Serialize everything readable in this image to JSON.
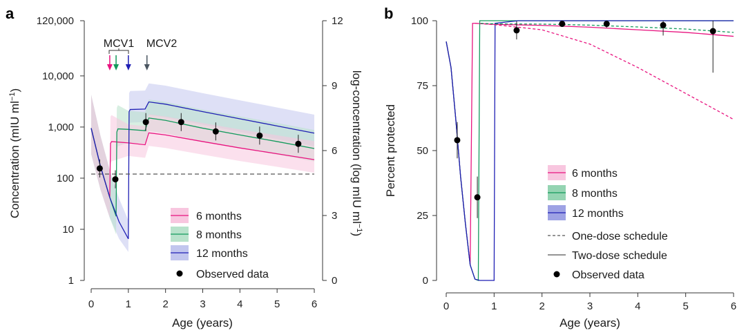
{
  "colors": {
    "six": "#e8137f",
    "eight": "#139a5c",
    "twelve": "#1f1fb4",
    "six_fill": "#f8c6df",
    "eight_fill": "#b8e2cb",
    "twelve_fill": "#c2c6ee",
    "threshold": "#555555",
    "mcv2_arrow": "#4a5560"
  },
  "panel_a": {
    "label": "a",
    "xlabel": "Age (years)",
    "ylabel_left": "Concentration (mIU ml",
    "ylabel_left_sup": "−1",
    "ylabel_left_close": ")",
    "ylabel_right": "log-concentration (log mIU ml",
    "ylabel_right_sup": "−1",
    "ylabel_right_close": ")",
    "xticks": [
      "0",
      "1",
      "2",
      "3",
      "4",
      "5",
      "6"
    ],
    "yticks_left": [
      "1",
      "10",
      "100",
      "1,000",
      "10,000",
      "120,000"
    ],
    "yticks_right": [
      "0",
      "3",
      "6",
      "9",
      "12"
    ],
    "mcv1_label": "MCV1",
    "mcv2_label": "MCV2",
    "legend": [
      "6 months",
      "8 months",
      "12 months",
      "Observed data"
    ]
  },
  "panel_b": {
    "label": "b",
    "xlabel": "Age (years)",
    "ylabel": "Percent protected",
    "xticks": [
      "0",
      "1",
      "2",
      "3",
      "4",
      "5",
      "6"
    ],
    "yticks": [
      "0",
      "25",
      "50",
      "75",
      "100"
    ],
    "legend": [
      "6 months",
      "8 months",
      "12 months",
      "One-dose schedule",
      "Two-dose schedule",
      "Observed data"
    ]
  },
  "chart_data": [
    {
      "type": "line",
      "xlabel": "Age (years)",
      "ylabel": "Concentration (mIU ml−1)",
      "ylabel_right": "log-concentration (log mIU ml−1)",
      "xlim": [
        0,
        6
      ],
      "ylim": [
        1,
        120000
      ],
      "y_scale": "log",
      "threshold": 120,
      "vaccination_ages": {
        "MCV1": [
          0.5,
          0.67,
          1.0
        ],
        "MCV2": 1.5
      },
      "series": [
        {
          "name": "6 months",
          "x": [
            0,
            0.25,
            0.5,
            0.52,
            0.55,
            1.0,
            1.45,
            1.55,
            2,
            3,
            4,
            5,
            6
          ],
          "y": [
            950,
            170,
            42,
            480,
            520,
            490,
            450,
            770,
            700,
            520,
            390,
            300,
            230
          ]
        },
        {
          "name": "8 months",
          "x": [
            0,
            0.25,
            0.5,
            0.67,
            0.69,
            0.72,
            1.0,
            1.45,
            1.55,
            2,
            3,
            4,
            5,
            6
          ],
          "y": [
            950,
            170,
            42,
            18,
            800,
            920,
            900,
            850,
            1500,
            1350,
            950,
            700,
            520,
            380
          ]
        },
        {
          "name": "12 months",
          "x": [
            0,
            0.25,
            0.5,
            0.75,
            1.0,
            1.02,
            1.05,
            1.45,
            1.55,
            2,
            3,
            4,
            5,
            6
          ],
          "y": [
            950,
            170,
            42,
            14,
            6.5,
            2000,
            2200,
            2250,
            3100,
            2800,
            2000,
            1450,
            1050,
            760
          ]
        },
        {
          "name": "Observed data",
          "x": [
            0.23,
            0.65,
            1.47,
            2.42,
            3.35,
            4.53,
            5.57
          ],
          "y": [
            155,
            95,
            1250,
            1250,
            820,
            680,
            470
          ]
        }
      ]
    },
    {
      "type": "line",
      "xlabel": "Age (years)",
      "ylabel": "Percent protected",
      "xlim": [
        0,
        6
      ],
      "ylim": [
        0,
        100
      ],
      "series": [
        {
          "name": "6 months",
          "x": [
            0,
            0.1,
            0.2,
            0.3,
            0.4,
            0.5,
            0.55,
            0.6,
            1,
            2,
            3,
            4,
            5,
            6
          ],
          "y": [
            92,
            82,
            62,
            40,
            22,
            6,
            99,
            99,
            98.6,
            98.2,
            97.5,
            96.5,
            95.5,
            94
          ]
        },
        {
          "name": "8 months",
          "x": [
            0,
            0.1,
            0.2,
            0.3,
            0.4,
            0.5,
            0.6,
            0.67,
            0.7,
            1,
            2,
            3,
            4,
            5,
            6
          ],
          "y": [
            92,
            82,
            62,
            40,
            22,
            6,
            0.5,
            0,
            100,
            100,
            100,
            100,
            100,
            100,
            100
          ]
        },
        {
          "name": "12 months",
          "x": [
            0,
            0.1,
            0.2,
            0.3,
            0.4,
            0.5,
            0.6,
            0.7,
            0.95,
            1.0,
            1.02,
            1.5,
            6
          ],
          "y": [
            92,
            82,
            62,
            40,
            22,
            6,
            0.5,
            0,
            0,
            0,
            99,
            100,
            100
          ]
        },
        {
          "name": "One-dose schedule 6 months",
          "x": [
            0.6,
            1,
            2,
            3,
            4,
            5,
            6
          ],
          "y": [
            99,
            98.5,
            96.5,
            91,
            82,
            72,
            62
          ]
        },
        {
          "name": "One-dose schedule 8 months",
          "x": [
            0.72,
            1,
            2,
            3,
            4,
            5,
            6
          ],
          "y": [
            99,
            98.8,
            98.7,
            98.3,
            97.6,
            96.8,
            95.5
          ]
        },
        {
          "name": "Observed data",
          "x": [
            0.23,
            0.65,
            1.47,
            2.42,
            3.35,
            4.53,
            5.57
          ],
          "y": [
            54,
            32,
            96.3,
            98.8,
            98.8,
            98.3,
            96
          ]
        }
      ]
    }
  ]
}
